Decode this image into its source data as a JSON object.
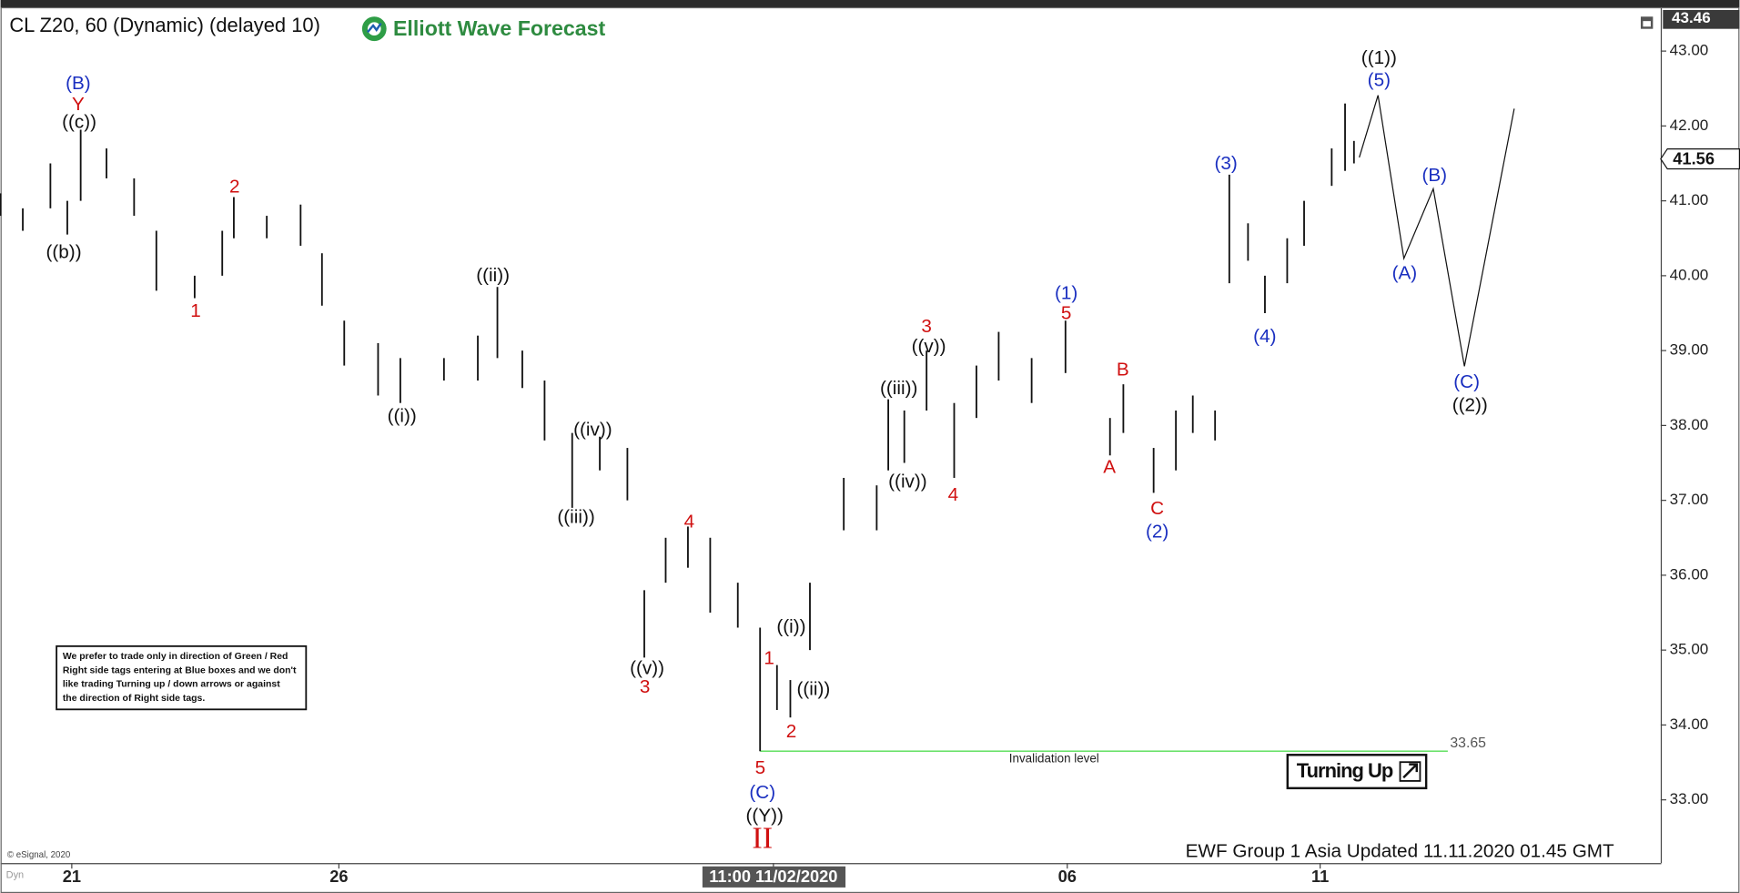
{
  "chart_data": {
    "type": "range",
    "title": "CL Z20, 60 (Dynamic) (delayed 10)",
    "logo": "Elliott Wave Forecast",
    "x": [
      -0.8,
      -0.55,
      -0.24,
      -0.05,
      0.1,
      0.39,
      0.7,
      0.95,
      1.38,
      1.69,
      1.82,
      2.19,
      2.57,
      2.81,
      3.06,
      3.44,
      3.69,
      4.18,
      4.56,
      4.78,
      5.06,
      5.31,
      5.62,
      5.93,
      6.24,
      6.43,
      6.67,
      6.92,
      7.17,
      7.48,
      7.73,
      7.92,
      8.07,
      8.29,
      8.67,
      9.04,
      9.17,
      9.35,
      9.6,
      9.91,
      10.16,
      10.41,
      10.78,
      11.16,
      11.66,
      11.81,
      12.15,
      12.4,
      12.59,
      12.84,
      13.0,
      13.21,
      13.4,
      13.65,
      13.84,
      14.15,
      14.3,
      14.4
    ],
    "high": [
      41.1,
      40.9,
      41.5,
      41.0,
      41.95,
      41.7,
      41.3,
      40.6,
      40.0,
      40.6,
      41.05,
      40.8,
      40.95,
      40.3,
      39.4,
      39.1,
      38.9,
      38.9,
      39.2,
      39.85,
      39.0,
      38.6,
      37.9,
      37.85,
      37.7,
      35.8,
      36.5,
      36.65,
      36.5,
      35.9,
      35.3,
      34.8,
      34.6,
      35.9,
      37.3,
      37.2,
      38.35,
      38.2,
      39.0,
      38.3,
      38.8,
      39.25,
      38.9,
      39.4,
      38.1,
      38.55,
      37.7,
      38.2,
      38.4,
      38.2,
      41.35,
      40.7,
      40.0,
      40.5,
      41.0,
      41.7,
      42.3,
      41.8
    ],
    "low": [
      40.8,
      40.6,
      40.9,
      40.55,
      41.0,
      41.3,
      40.8,
      39.8,
      39.7,
      40.0,
      40.5,
      40.5,
      40.4,
      39.6,
      38.8,
      38.4,
      38.3,
      38.6,
      38.6,
      38.9,
      38.5,
      37.8,
      36.9,
      37.4,
      37.0,
      34.9,
      35.9,
      36.1,
      35.5,
      35.3,
      33.65,
      34.2,
      34.1,
      35.0,
      36.6,
      36.6,
      37.4,
      37.5,
      38.2,
      37.3,
      38.1,
      38.6,
      38.3,
      38.7,
      37.6,
      37.9,
      37.1,
      37.4,
      37.9,
      37.8,
      39.9,
      40.2,
      39.5,
      39.9,
      40.4,
      41.2,
      41.4,
      41.5
    ],
    "bar_color": "#111111",
    "projection": {
      "x": [
        14.46,
        14.67,
        14.96,
        15.29,
        15.64,
        16.2
      ],
      "values": [
        41.58,
        42.41,
        40.23,
        41.16,
        38.79,
        42.23
      ],
      "color": "#111111"
    },
    "xlim": [
      -0.8,
      17.85
    ],
    "xticks": [
      {
        "value": 0,
        "label": "21"
      },
      {
        "value": 3.0,
        "label": "26"
      },
      {
        "value": 7.88,
        "label": "11:00 11/02/2020"
      },
      {
        "value": 11.18,
        "label": "06"
      },
      {
        "value": 14.02,
        "label": "11"
      }
    ],
    "ylim": [
      32.15,
      43.46
    ],
    "yticks": [
      {
        "value": 33,
        "label": "33.00"
      },
      {
        "value": 34,
        "label": "34.00"
      },
      {
        "value": 35,
        "label": "35.00"
      },
      {
        "value": 36,
        "label": "36.00"
      },
      {
        "value": 37,
        "label": "37.00"
      },
      {
        "value": 38,
        "label": "38.00"
      },
      {
        "value": 39,
        "label": "39.00"
      },
      {
        "value": 40,
        "label": "40.00"
      },
      {
        "value": 41,
        "label": "41.00"
      },
      {
        "value": 42,
        "label": "42.00"
      },
      {
        "value": 43,
        "label": "43.00"
      }
    ],
    "last_price": 41.56,
    "invalidation": {
      "value": 33.65,
      "label": "Invalidation level",
      "color": "#55dd55"
    },
    "annotations": [
      {
        "text": "(B)",
        "color": "#1a2fc0"
      },
      {
        "text": "Y",
        "color": "#d01010"
      },
      {
        "text": "((c))",
        "color": "#111111"
      },
      {
        "text": "((b))",
        "color": "#111111"
      },
      {
        "text": "1",
        "color": "#d01010"
      },
      {
        "text": "2",
        "color": "#d01010"
      },
      {
        "text": "((ii))",
        "color": "#111111"
      },
      {
        "text": "((i))",
        "color": "#111111"
      },
      {
        "text": "((iv))",
        "color": "#111111"
      },
      {
        "text": "((iii))",
        "color": "#111111"
      },
      {
        "text": "((v))",
        "color": "#111111"
      },
      {
        "text": "3",
        "color": "#d01010"
      },
      {
        "text": "4",
        "color": "#d01010"
      },
      {
        "text": "1",
        "color": "#d01010"
      },
      {
        "text": "((i))",
        "color": "#111111"
      },
      {
        "text": "((ii))",
        "color": "#111111"
      },
      {
        "text": "2",
        "color": "#d01010"
      },
      {
        "text": "5",
        "color": "#d01010"
      },
      {
        "text": "(C)",
        "color": "#1a2fc0"
      },
      {
        "text": "((Y))",
        "color": "#111111"
      },
      {
        "text": "II",
        "color": "#d01010"
      },
      {
        "text": "((iii))",
        "color": "#111111"
      },
      {
        "text": "((iv))",
        "color": "#111111"
      },
      {
        "text": "3",
        "color": "#d01010"
      },
      {
        "text": "((v))",
        "color": "#111111"
      },
      {
        "text": "4",
        "color": "#d01010"
      },
      {
        "text": "(1)",
        "color": "#1a2fc0"
      },
      {
        "text": "5",
        "color": "#d01010"
      },
      {
        "text": "B",
        "color": "#d01010"
      },
      {
        "text": "A",
        "color": "#d01010"
      },
      {
        "text": "C",
        "color": "#d01010"
      },
      {
        "text": "(2)",
        "color": "#1a2fc0"
      },
      {
        "text": "(3)",
        "color": "#1a2fc0"
      },
      {
        "text": "(4)",
        "color": "#1a2fc0"
      },
      {
        "text": "((1))",
        "color": "#111111"
      },
      {
        "text": "(5)",
        "color": "#1a2fc0"
      },
      {
        "text": "(B)",
        "color": "#1a2fc0"
      },
      {
        "text": "(A)",
        "color": "#1a2fc0"
      },
      {
        "text": "(C)",
        "color": "#1a2fc0"
      },
      {
        "text": "((2))",
        "color": "#111111"
      }
    ],
    "note": [
      "We prefer to trade only in direction of Green / Red",
      "Right side tags entering at Blue boxes and we don't",
      "like trading Turning up / down arrows or against",
      "the direction of Right side tags."
    ],
    "signal": "Turning Up",
    "footer": "EWF Group 1 Asia Updated 11.11.2020 01.45 GMT",
    "copyright": "© eSignal, 2020",
    "mode": "Dyn"
  }
}
